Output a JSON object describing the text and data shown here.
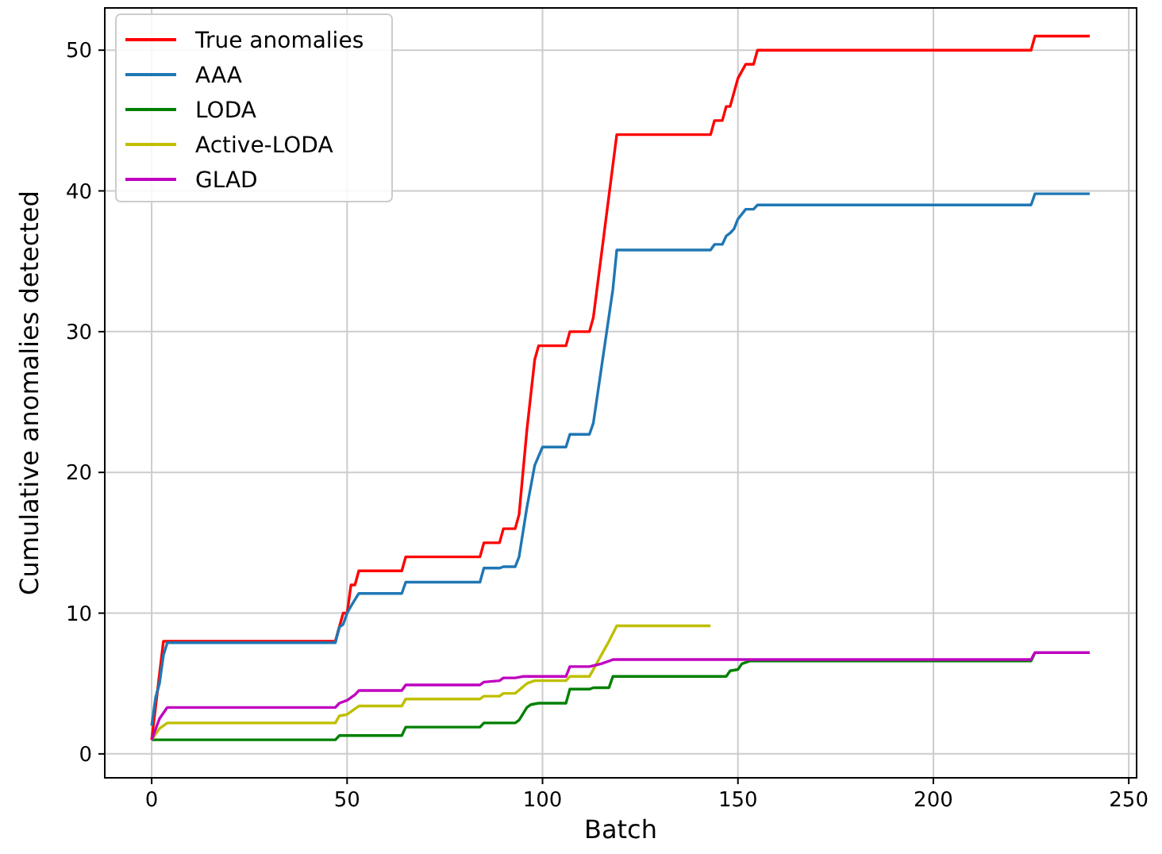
{
  "chart_data": {
    "type": "line",
    "xlabel": "Batch",
    "ylabel": "Cumulative anomalies detected",
    "xlim": [
      -12,
      252
    ],
    "ylim": [
      -1.7,
      53
    ],
    "xticks": [
      0,
      50,
      100,
      150,
      200,
      250
    ],
    "yticks": [
      0,
      10,
      20,
      30,
      40,
      50
    ],
    "grid": true,
    "legend": "top left",
    "series": [
      {
        "name": "True anomalies",
        "color": "#ff0000",
        "x": [
          0,
          3,
          47,
          48,
          49,
          50,
          51,
          52,
          53,
          64,
          65,
          84,
          85,
          89,
          90,
          93,
          94,
          96,
          98,
          99,
          106,
          107,
          112,
          113,
          119,
          143,
          144,
          146,
          147,
          148,
          149,
          150,
          152,
          154,
          155,
          157,
          225,
          226,
          240
        ],
        "values": [
          1,
          8,
          8,
          9,
          10,
          10,
          12,
          12,
          13,
          13,
          14,
          14,
          15,
          15,
          16,
          16,
          17,
          23,
          28,
          29,
          29,
          30,
          30,
          31,
          44,
          44,
          45,
          45,
          46,
          46,
          47,
          48,
          49,
          49,
          50,
          50,
          50,
          51,
          51
        ]
      },
      {
        "name": "AAA",
        "color": "#1f77b4",
        "x": [
          0,
          1,
          2,
          3,
          4,
          47,
          48,
          49,
          50,
          51,
          53,
          64,
          65,
          84,
          85,
          89,
          90,
          93,
          94,
          96,
          98,
          100,
          106,
          107,
          112,
          113,
          118,
          119,
          143,
          144,
          146,
          147,
          148,
          149,
          150,
          152,
          154,
          155,
          225,
          226,
          240
        ],
        "values": [
          2,
          4,
          5,
          7,
          7.9,
          7.9,
          9,
          9.2,
          10,
          10.5,
          11.4,
          11.4,
          12.2,
          12.2,
          13.2,
          13.2,
          13.3,
          13.3,
          14,
          17.5,
          20.5,
          21.8,
          21.8,
          22.7,
          22.7,
          23.5,
          33,
          35.8,
          35.8,
          36.2,
          36.2,
          36.8,
          37,
          37.3,
          38,
          38.7,
          38.7,
          39,
          39,
          39.8,
          39.8
        ]
      },
      {
        "name": "LODA",
        "color": "#008000",
        "x": [
          0,
          47,
          48,
          64,
          65,
          84,
          85,
          93,
          94,
          96,
          97,
          99,
          106,
          107,
          112,
          113,
          117,
          118,
          147,
          148,
          150,
          151,
          153,
          225,
          226
        ],
        "values": [
          1,
          1,
          1.3,
          1.3,
          1.9,
          1.9,
          2.2,
          2.2,
          2.4,
          3.3,
          3.5,
          3.6,
          3.6,
          4.6,
          4.6,
          4.7,
          4.7,
          5.5,
          5.5,
          5.9,
          6,
          6.4,
          6.6,
          6.6,
          7.2
        ]
      },
      {
        "name": "Active-LODA",
        "color": "#bfbf00",
        "x": [
          0,
          2,
          4,
          47,
          48,
          50,
          52,
          53,
          64,
          65,
          84,
          85,
          89,
          90,
          93,
          96,
          98,
          106,
          107,
          112,
          114,
          117,
          119,
          143
        ],
        "values": [
          1,
          1.8,
          2.2,
          2.2,
          2.7,
          2.8,
          3.2,
          3.4,
          3.4,
          3.9,
          3.9,
          4.1,
          4.1,
          4.3,
          4.3,
          5,
          5.2,
          5.2,
          5.5,
          5.5,
          6.5,
          8,
          9.1,
          9.1
        ]
      },
      {
        "name": "GLAD",
        "color": "#bf00bf",
        "x": [
          0,
          2,
          4,
          47,
          48,
          50,
          52,
          53,
          64,
          65,
          84,
          85,
          89,
          90,
          93,
          95,
          106,
          107,
          112,
          115,
          118,
          225,
          226,
          240
        ],
        "values": [
          1,
          2.5,
          3.3,
          3.3,
          3.6,
          3.8,
          4.2,
          4.5,
          4.5,
          4.9,
          4.9,
          5.1,
          5.2,
          5.4,
          5.4,
          5.5,
          5.5,
          6.2,
          6.2,
          6.4,
          6.7,
          6.7,
          7.2,
          7.2
        ]
      }
    ]
  }
}
